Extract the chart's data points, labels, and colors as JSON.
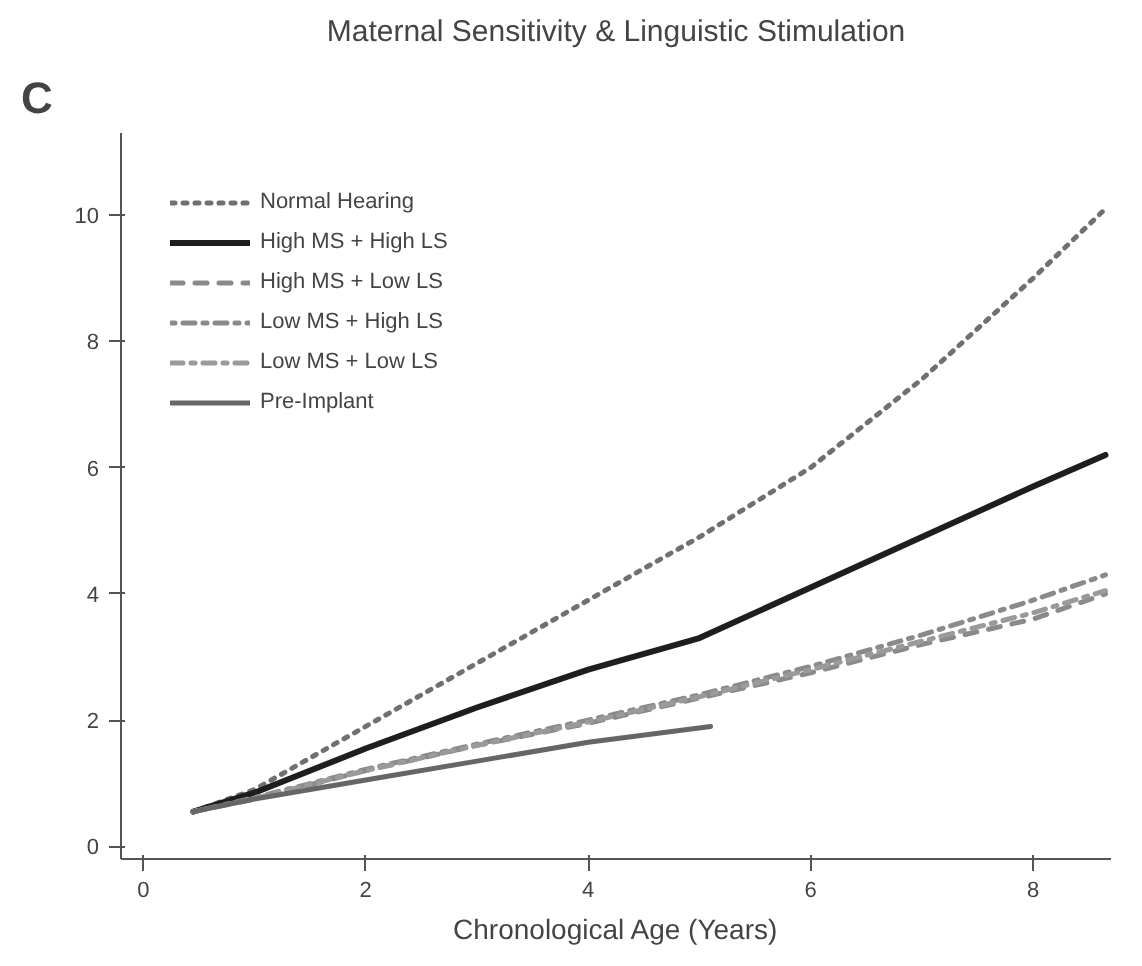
{
  "chart_data": {
    "type": "line",
    "title": "Maternal Sensitivity & Linguistic Stimulation",
    "xlabel": "Chronological Age (Years)",
    "annotations": [
      "C"
    ],
    "xlim": [
      -0.2,
      8.7
    ],
    "ylim": [
      -0.2,
      11.3
    ],
    "xticks": [
      0,
      2,
      4,
      6,
      8
    ],
    "yticks": [
      0,
      2,
      4,
      6,
      8,
      10
    ],
    "grid": false,
    "legend": "top left",
    "marker": "none",
    "series": [
      {
        "name": "Normal Hearing",
        "color": "#707070",
        "line_style": "dotted",
        "x": [
          0.45,
          1,
          2,
          3,
          4,
          5,
          6,
          7,
          8,
          8.65
        ],
        "values": [
          0.55,
          0.9,
          1.9,
          2.9,
          3.9,
          4.9,
          6.0,
          7.4,
          9.0,
          10.1
        ]
      },
      {
        "name": "High MS + High LS",
        "color": "#1e1e1e",
        "line_style": "solid",
        "x": [
          0.45,
          1,
          2,
          3,
          4,
          5,
          6,
          7,
          8,
          8.65
        ],
        "values": [
          0.55,
          0.85,
          1.55,
          2.2,
          2.8,
          3.3,
          4.1,
          4.9,
          5.7,
          6.2
        ]
      },
      {
        "name": "High MS + Low LS",
        "color": "#8a8a8a",
        "line_style": "dashed",
        "x": [
          0.45,
          1,
          2,
          3,
          4,
          5,
          6,
          7,
          8,
          8.65
        ],
        "values": [
          0.55,
          0.75,
          1.2,
          1.6,
          1.95,
          2.35,
          2.75,
          3.2,
          3.6,
          4.0
        ]
      },
      {
        "name": "Low MS + High LS",
        "color": "#8a8a8a",
        "line_style": "dotdash",
        "x": [
          0.45,
          1,
          2,
          3,
          4,
          5,
          6,
          7,
          8,
          8.65
        ],
        "values": [
          0.55,
          0.77,
          1.22,
          1.62,
          2.0,
          2.4,
          2.85,
          3.35,
          3.9,
          4.3
        ]
      },
      {
        "name": "Low MS + Low LS",
        "color": "#9a9a9a",
        "line_style": "dashdot",
        "x": [
          0.45,
          1,
          2,
          3,
          4,
          5,
          6,
          7,
          8,
          8.65
        ],
        "values": [
          0.55,
          0.76,
          1.2,
          1.6,
          1.97,
          2.37,
          2.8,
          3.25,
          3.7,
          4.05
        ]
      },
      {
        "name": "Pre-Implant",
        "color": "#666666",
        "line_style": "solid",
        "x": [
          0.45,
          1,
          2,
          3,
          4,
          5.1
        ],
        "values": [
          0.55,
          0.75,
          1.05,
          1.35,
          1.65,
          1.9
        ]
      }
    ]
  }
}
